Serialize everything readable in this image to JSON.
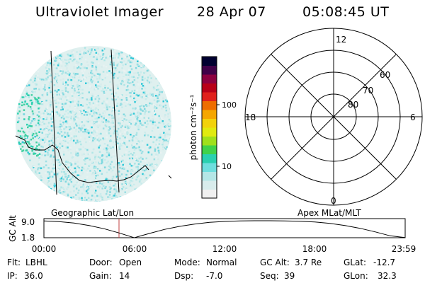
{
  "header": {
    "title": "Ultraviolet Imager",
    "date": "28 Apr 07",
    "time": "05:08:45 UT"
  },
  "colorbar": {
    "unit_label": "photon cm⁻²s⁻¹",
    "ticks": [
      "100",
      "10"
    ],
    "colors": [
      "#f0f0f0",
      "#d8ecec",
      "#b4e6e6",
      "#6fdede",
      "#2ad0b0",
      "#40d24a",
      "#9fe01c",
      "#e0ea10",
      "#f2d20c",
      "#f5a600",
      "#ee6d00",
      "#e0201c",
      "#b80018",
      "#8c0040",
      "#400048",
      "#000030"
    ]
  },
  "polar_plot": {
    "labels_top": "12",
    "labels_bottom": "0",
    "labels_left": "18",
    "labels_right": "6",
    "lat_labels": [
      "60",
      "70",
      "80"
    ]
  },
  "timeline": {
    "left_title": "Geographic Lat/Lon",
    "right_title": "Apex MLat/MLT",
    "axis_label": "GC Alt",
    "ytick_top": "9.0",
    "ytick_bottom": "1.8",
    "xticks": [
      "00:00",
      "06:00",
      "12:00",
      "18:00",
      "23:59"
    ],
    "current_marker": "05:08:45",
    "altitude_series": {
      "x_hours": [
        0,
        1,
        2,
        3,
        4,
        5,
        6,
        7,
        8,
        9,
        10,
        11,
        12,
        13,
        14,
        15,
        16,
        17,
        18,
        19,
        20,
        21,
        22,
        23,
        23.98
      ],
      "y_re": [
        8.9,
        8.6,
        8.0,
        7.0,
        5.6,
        3.8,
        1.8,
        3.6,
        5.3,
        6.6,
        7.6,
        8.3,
        8.7,
        8.95,
        9.0,
        9.0,
        8.95,
        8.8,
        8.5,
        7.9,
        7.0,
        5.8,
        4.3,
        2.6,
        1.9
      ]
    }
  },
  "footer": {
    "flt_label": "Flt:",
    "flt_value": "LBHL",
    "ip_label": "IP:",
    "ip_value": "36.0",
    "door_label": "Door:",
    "door_value": "Open",
    "gain_label": "Gain:",
    "gain_value": "14",
    "mode_label": "Mode:",
    "mode_value": "Normal",
    "dsp_label": "Dsp:",
    "dsp_value": "-7.0",
    "gcalt_label": "GC Alt:",
    "gcalt_value": "3.7 Re",
    "seq_label": "Seq:",
    "seq_value": "39",
    "glat_label": "GLat:",
    "glat_value": "-12.7",
    "glon_label": "GLon:",
    "glon_value": "32.3"
  }
}
